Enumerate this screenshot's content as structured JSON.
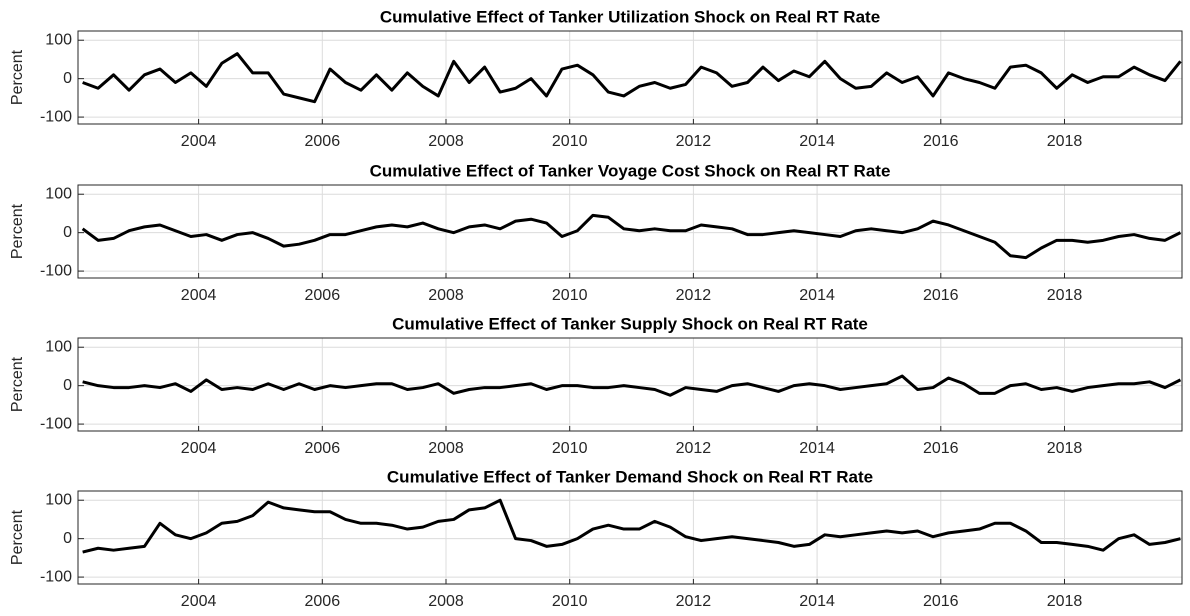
{
  "chart_data": [
    {
      "type": "line",
      "title": "Cumulative Effect of Tanker Utilization Shock on Real RT Rate",
      "ylabel": "Percent",
      "color": "#000000",
      "grid": true,
      "x": [
        2002.125,
        2002.375,
        2002.625,
        2002.875,
        2003.125,
        2003.375,
        2003.625,
        2003.875,
        2004.125,
        2004.375,
        2004.625,
        2004.875,
        2005.125,
        2005.375,
        2005.625,
        2005.875,
        2006.125,
        2006.375,
        2006.625,
        2006.875,
        2007.125,
        2007.375,
        2007.625,
        2007.875,
        2008.125,
        2008.375,
        2008.625,
        2008.875,
        2009.125,
        2009.375,
        2009.625,
        2009.875,
        2010.125,
        2010.375,
        2010.625,
        2010.875,
        2011.125,
        2011.375,
        2011.625,
        2011.875,
        2012.125,
        2012.375,
        2012.625,
        2012.875,
        2013.125,
        2013.375,
        2013.625,
        2013.875,
        2014.125,
        2014.375,
        2014.625,
        2014.875,
        2015.125,
        2015.375,
        2015.625,
        2015.875,
        2016.125,
        2016.375,
        2016.625,
        2016.875,
        2017.125,
        2017.375,
        2017.625,
        2017.875,
        2018.125,
        2018.375,
        2018.625,
        2018.875,
        2019.125,
        2019.375,
        2019.625,
        2019.875
      ],
      "values": [
        -10,
        -25,
        10,
        -30,
        10,
        25,
        -10,
        15,
        -20,
        40,
        65,
        15,
        15,
        -40,
        -50,
        -60,
        25,
        -10,
        -30,
        10,
        -30,
        15,
        -20,
        -45,
        45,
        -10,
        30,
        -35,
        -25,
        0,
        -45,
        25,
        35,
        10,
        -35,
        -45,
        -20,
        -10,
        -25,
        -15,
        30,
        15,
        -20,
        -10,
        30,
        -5,
        20,
        5,
        45,
        0,
        -25,
        -20,
        15,
        -10,
        5,
        -45,
        15,
        0,
        -10,
        -25,
        30,
        35,
        15,
        -25,
        10,
        -10,
        5,
        5,
        30,
        10,
        -5,
        45
      ],
      "xlim": [
        2002.05,
        2019.9
      ],
      "ylim": [
        -118,
        124
      ],
      "xticks": [
        2004,
        2006,
        2008,
        2010,
        2012,
        2014,
        2016,
        2018
      ],
      "yticks": [
        -100,
        0,
        100
      ]
    },
    {
      "type": "line",
      "title": "Cumulative Effect of Tanker Voyage Cost Shock on Real RT Rate",
      "ylabel": "Percent",
      "color": "#000000",
      "grid": true,
      "x": [
        2002.125,
        2002.375,
        2002.625,
        2002.875,
        2003.125,
        2003.375,
        2003.625,
        2003.875,
        2004.125,
        2004.375,
        2004.625,
        2004.875,
        2005.125,
        2005.375,
        2005.625,
        2005.875,
        2006.125,
        2006.375,
        2006.625,
        2006.875,
        2007.125,
        2007.375,
        2007.625,
        2007.875,
        2008.125,
        2008.375,
        2008.625,
        2008.875,
        2009.125,
        2009.375,
        2009.625,
        2009.875,
        2010.125,
        2010.375,
        2010.625,
        2010.875,
        2011.125,
        2011.375,
        2011.625,
        2011.875,
        2012.125,
        2012.375,
        2012.625,
        2012.875,
        2013.125,
        2013.375,
        2013.625,
        2013.875,
        2014.125,
        2014.375,
        2014.625,
        2014.875,
        2015.125,
        2015.375,
        2015.625,
        2015.875,
        2016.125,
        2016.375,
        2016.625,
        2016.875,
        2017.125,
        2017.375,
        2017.625,
        2017.875,
        2018.125,
        2018.375,
        2018.625,
        2018.875,
        2019.125,
        2019.375,
        2019.625,
        2019.875
      ],
      "values": [
        10,
        -20,
        -15,
        5,
        15,
        20,
        5,
        -10,
        -5,
        -20,
        -5,
        0,
        -15,
        -35,
        -30,
        -20,
        -5,
        -5,
        5,
        15,
        20,
        15,
        25,
        10,
        0,
        15,
        20,
        10,
        30,
        35,
        25,
        -10,
        5,
        45,
        40,
        10,
        5,
        10,
        5,
        5,
        20,
        15,
        10,
        -5,
        -5,
        0,
        5,
        0,
        -5,
        -10,
        5,
        10,
        5,
        0,
        10,
        30,
        20,
        5,
        -10,
        -25,
        -60,
        -65,
        -40,
        -20,
        -20,
        -25,
        -20,
        -10,
        -5,
        -15,
        -20,
        0
      ],
      "xlim": [
        2002.05,
        2019.9
      ],
      "ylim": [
        -118,
        124
      ],
      "xticks": [
        2004,
        2006,
        2008,
        2010,
        2012,
        2014,
        2016,
        2018
      ],
      "yticks": [
        -100,
        0,
        100
      ]
    },
    {
      "type": "line",
      "title": "Cumulative Effect of Tanker Supply Shock on Real RT Rate",
      "ylabel": "Percent",
      "color": "#000000",
      "grid": true,
      "x": [
        2002.125,
        2002.375,
        2002.625,
        2002.875,
        2003.125,
        2003.375,
        2003.625,
        2003.875,
        2004.125,
        2004.375,
        2004.625,
        2004.875,
        2005.125,
        2005.375,
        2005.625,
        2005.875,
        2006.125,
        2006.375,
        2006.625,
        2006.875,
        2007.125,
        2007.375,
        2007.625,
        2007.875,
        2008.125,
        2008.375,
        2008.625,
        2008.875,
        2009.125,
        2009.375,
        2009.625,
        2009.875,
        2010.125,
        2010.375,
        2010.625,
        2010.875,
        2011.125,
        2011.375,
        2011.625,
        2011.875,
        2012.125,
        2012.375,
        2012.625,
        2012.875,
        2013.125,
        2013.375,
        2013.625,
        2013.875,
        2014.125,
        2014.375,
        2014.625,
        2014.875,
        2015.125,
        2015.375,
        2015.625,
        2015.875,
        2016.125,
        2016.375,
        2016.625,
        2016.875,
        2017.125,
        2017.375,
        2017.625,
        2017.875,
        2018.125,
        2018.375,
        2018.625,
        2018.875,
        2019.125,
        2019.375,
        2019.625,
        2019.875
      ],
      "values": [
        10,
        0,
        -5,
        -5,
        0,
        -5,
        5,
        -15,
        15,
        -10,
        -5,
        -10,
        5,
        -10,
        5,
        -10,
        0,
        -5,
        0,
        5,
        5,
        -10,
        -5,
        5,
        -20,
        -10,
        -5,
        -5,
        0,
        5,
        -10,
        0,
        0,
        -5,
        -5,
        0,
        -5,
        -10,
        -25,
        -5,
        -10,
        -15,
        0,
        5,
        -5,
        -15,
        0,
        5,
        0,
        -10,
        -5,
        0,
        5,
        25,
        -10,
        -5,
        20,
        5,
        -20,
        -20,
        0,
        5,
        -10,
        -5,
        -15,
        -5,
        0,
        5,
        5,
        10,
        -5,
        15
      ],
      "xlim": [
        2002.05,
        2019.9
      ],
      "ylim": [
        -118,
        124
      ],
      "xticks": [
        2004,
        2006,
        2008,
        2010,
        2012,
        2014,
        2016,
        2018
      ],
      "yticks": [
        -100,
        0,
        100
      ]
    },
    {
      "type": "line",
      "title": "Cumulative Effect of Tanker Demand Shock on Real RT Rate",
      "ylabel": "Percent",
      "color": "#000000",
      "grid": true,
      "x": [
        2002.125,
        2002.375,
        2002.625,
        2002.875,
        2003.125,
        2003.375,
        2003.625,
        2003.875,
        2004.125,
        2004.375,
        2004.625,
        2004.875,
        2005.125,
        2005.375,
        2005.625,
        2005.875,
        2006.125,
        2006.375,
        2006.625,
        2006.875,
        2007.125,
        2007.375,
        2007.625,
        2007.875,
        2008.125,
        2008.375,
        2008.625,
        2008.875,
        2009.125,
        2009.375,
        2009.625,
        2009.875,
        2010.125,
        2010.375,
        2010.625,
        2010.875,
        2011.125,
        2011.375,
        2011.625,
        2011.875,
        2012.125,
        2012.375,
        2012.625,
        2012.875,
        2013.125,
        2013.375,
        2013.625,
        2013.875,
        2014.125,
        2014.375,
        2014.625,
        2014.875,
        2015.125,
        2015.375,
        2015.625,
        2015.875,
        2016.125,
        2016.375,
        2016.625,
        2016.875,
        2017.125,
        2017.375,
        2017.625,
        2017.875,
        2018.125,
        2018.375,
        2018.625,
        2018.875,
        2019.125,
        2019.375,
        2019.625,
        2019.875
      ],
      "values": [
        -35,
        -25,
        -30,
        -25,
        -20,
        40,
        10,
        0,
        15,
        40,
        45,
        60,
        95,
        80,
        75,
        70,
        70,
        50,
        40,
        40,
        35,
        25,
        30,
        45,
        50,
        75,
        80,
        100,
        0,
        -5,
        -20,
        -15,
        0,
        25,
        35,
        25,
        25,
        45,
        30,
        5,
        -5,
        0,
        5,
        0,
        -5,
        -10,
        -20,
        -15,
        10,
        5,
        10,
        15,
        20,
        15,
        20,
        5,
        15,
        20,
        25,
        40,
        40,
        20,
        -10,
        -10,
        -15,
        -20,
        -30,
        0,
        10,
        -15,
        -10,
        0
      ],
      "xlim": [
        2002.05,
        2019.9
      ],
      "ylim": [
        -118,
        124
      ],
      "xticks": [
        2004,
        2006,
        2008,
        2010,
        2012,
        2014,
        2016,
        2018
      ],
      "yticks": [
        -100,
        0,
        100
      ]
    }
  ]
}
